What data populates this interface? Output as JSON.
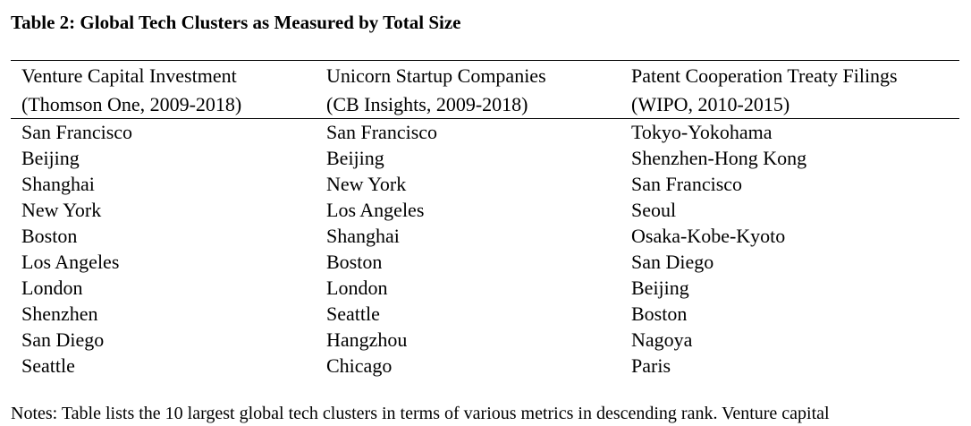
{
  "caption": "Table 2: Global Tech Clusters as Measured by Total Size",
  "columns": [
    {
      "header_line1": "Venture Capital Investment",
      "header_line2": "(Thomson One, 2009-2018)"
    },
    {
      "header_line1": "Unicorn Startup Companies",
      "header_line2": "(CB Insights, 2009-2018)"
    },
    {
      "header_line1": "Patent Cooperation Treaty Filings",
      "header_line2": "(WIPO, 2010-2015)"
    }
  ],
  "rows": [
    [
      "San Francisco",
      "San Francisco",
      "Tokyo-Yokohama"
    ],
    [
      "Beijing",
      "Beijing",
      "Shenzhen-Hong Kong"
    ],
    [
      "Shanghai",
      "New York",
      "San Francisco"
    ],
    [
      "New York",
      "Los Angeles",
      "Seoul"
    ],
    [
      "Boston",
      "Shanghai",
      "Osaka-Kobe-Kyoto"
    ],
    [
      "Los Angeles",
      "Boston",
      "San Diego"
    ],
    [
      "London",
      "London",
      "Beijing"
    ],
    [
      "Shenzhen",
      "Seattle",
      "Boston"
    ],
    [
      "San Diego",
      "Hangzhou",
      "Nagoya"
    ],
    [
      "Seattle",
      "Chicago",
      "Paris"
    ]
  ],
  "notes": "Notes: Table lists the 10 largest global tech clusters in terms of various metrics in descending rank. Venture capital"
}
